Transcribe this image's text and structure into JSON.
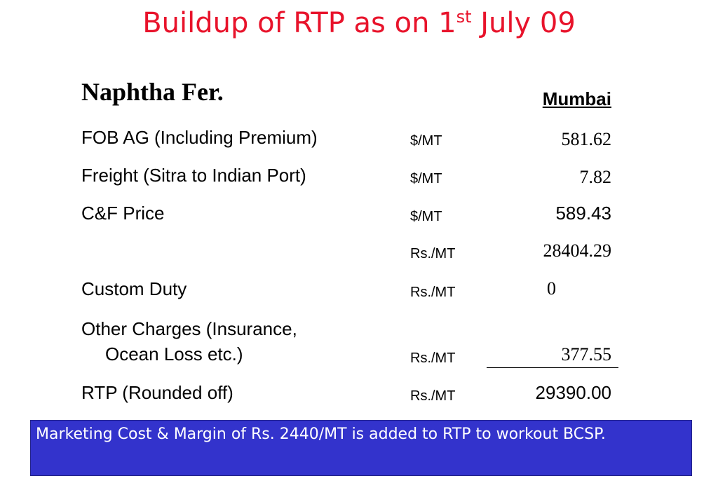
{
  "title": {
    "main": "Buildup of RTP as on 1",
    "superscript": "st",
    "tail": " July 09"
  },
  "section": {
    "title": "Naphtha Fer.",
    "column_header": "Mumbai"
  },
  "rows": [
    {
      "label": "FOB AG (Including Premium)",
      "unit": "$/MT",
      "value": "581.62"
    },
    {
      "label": "Freight (Sitra to Indian Port)",
      "unit": "$/MT",
      "value": "7.82"
    },
    {
      "label": "C&F Price",
      "unit": "$/MT",
      "value": "589.43"
    },
    {
      "label": "",
      "unit": "Rs./MT",
      "value": "28404.29"
    },
    {
      "label": "Custom Duty",
      "unit": "Rs./MT",
      "value": "0"
    },
    {
      "label_line1": "Other Charges (Insurance,",
      "label_line2": "Ocean Loss etc.)",
      "unit": "Rs./MT",
      "value": "377.55"
    },
    {
      "label": "RTP (Rounded off)",
      "unit": "Rs./MT",
      "value": "29390.00"
    }
  ],
  "note": "Marketing Cost & Margin of Rs. 2440/MT is added to RTP to workout BCSP."
}
